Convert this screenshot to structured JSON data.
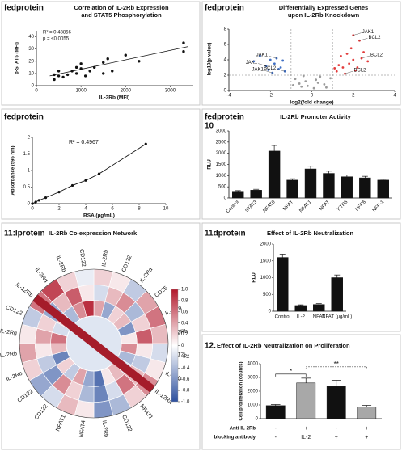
{
  "chart_data": [
    {
      "type": "scatter",
      "label": "fedprotein",
      "title": [
        "Correlation of IL-2Rb Expression",
        "and STAT5 Phosphorylation"
      ],
      "xlabel": "IL-3Rb (MFI)",
      "ylabel": "p-STAT5 (MFI)",
      "x": [
        400,
        500,
        600,
        700,
        800,
        900,
        1000,
        1000,
        1100,
        1200,
        1300,
        1500,
        1500,
        1600,
        1700,
        2000,
        2300,
        3300,
        3300,
        500,
        900,
        400
      ],
      "y": [
        5,
        8,
        7,
        9,
        12,
        10,
        14,
        18,
        8,
        12,
        15,
        19,
        10,
        22,
        12,
        25,
        20,
        35,
        28,
        12,
        15,
        9
      ],
      "color": "#111111",
      "trendline": {
        "x": [
          300,
          3400
        ],
        "y": [
          8,
          32
        ]
      },
      "annotations": [
        "R² = 0.48856",
        "p = <0.0055"
      ],
      "xlim": [
        0,
        3500
      ],
      "xticks": [
        0,
        1000,
        2000,
        3000
      ],
      "ylim": [
        0,
        45
      ],
      "yticks": [
        0,
        10,
        20,
        30,
        40
      ]
    },
    {
      "type": "volcano",
      "label": "fedprotein",
      "title": [
        "Differentially Expressed Genes",
        "upon IL-2Rb Knockdown"
      ],
      "xlabel": "log2(fold change)",
      "ylabel": "-log10(p-value)",
      "series": [
        {
          "color": "#3f6fc4",
          "x": [
            -1.5,
            -1.8,
            -2,
            -2.2,
            -1.3,
            -2.5,
            -1.6,
            -2.8,
            -1.9,
            -1.4,
            -2.1,
            -1.7
          ],
          "y": [
            3,
            3.5,
            4,
            3.2,
            2.5,
            4.5,
            2.8,
            3.8,
            2.3,
            3.9,
            2.7,
            4.2
          ]
        },
        {
          "color": "#e23b3b",
          "x": [
            1.2,
            1.5,
            1.8,
            2,
            2.2,
            1.4,
            2.5,
            1.6,
            1.9,
            2.3,
            2.7,
            1.3,
            2.1,
            1.7,
            2.4,
            1.1,
            2.0
          ],
          "y": [
            2.5,
            3,
            3.5,
            4,
            3,
            4.5,
            5,
            2.2,
            5.5,
            6.5,
            3.8,
            3.3,
            2.6,
            4.8,
            4.2,
            2.9,
            7.2
          ]
        },
        {
          "color": "#9a9a9a",
          "x": [
            -0.5,
            0.3,
            -0.8,
            0.6,
            0.1,
            -0.3,
            0.9,
            -0.6,
            0.4,
            -0.2,
            0.7,
            -0.9,
            0.2,
            -0.4
          ],
          "y": [
            0.5,
            1,
            1.5,
            0.8,
            0.3,
            1.2,
            1.6,
            0.9,
            1.8,
            0.6,
            0.4,
            0.7,
            1.4,
            1.9
          ]
        }
      ],
      "vlines": [
        -1,
        1
      ],
      "hline": 2,
      "annotations": [
        {
          "text": "JAK1",
          "x": 2.0,
          "y": 7.2
        },
        {
          "text": "BCL2",
          "x": 2.3,
          "y": 6.5
        },
        {
          "text": "BCL2",
          "x": 2.4,
          "y": 4.2
        },
        {
          "text": "BCL2",
          "x": 1.6,
          "y": 2.2
        },
        {
          "text": "JAK1",
          "x": -1.7,
          "y": 4.2
        },
        {
          "text": "JAK1",
          "x": -2.2,
          "y": 3.2
        },
        {
          "text": "JAK1",
          "x": -1.9,
          "y": 2.3
        },
        {
          "text": "BCL2",
          "x": -1.3,
          "y": 2.5
        }
      ],
      "xlim": [
        -4,
        4
      ],
      "xticks": [
        -4,
        -2,
        0,
        2,
        4
      ],
      "ylim": [
        0,
        8
      ],
      "yticks": [
        0,
        2,
        4,
        6,
        8
      ]
    },
    {
      "type": "line",
      "label": "fedprotein",
      "xlabel": "BSA (µg/mL)",
      "ylabel": "Absorbance (595 nm)",
      "x": [
        0,
        0.25,
        0.5,
        1,
        2,
        3,
        4,
        5,
        8.5
      ],
      "y": [
        0,
        0.05,
        0.1,
        0.18,
        0.35,
        0.55,
        0.7,
        0.9,
        1.8
      ],
      "color": "#111111",
      "annotations": [
        "R² = 0.4967"
      ],
      "xlim": [
        0,
        10
      ],
      "xticks": [
        0,
        2,
        4,
        6,
        8,
        10
      ],
      "ylim": [
        0,
        2
      ],
      "yticks": [
        0,
        0.5,
        1,
        1.5,
        2
      ]
    },
    {
      "type": "bar",
      "label": "fedprotein",
      "panel_number": "10",
      "title": [
        "IL-2Rb Promoter Activity"
      ],
      "ylabel": "RLU",
      "categories": [
        "Control",
        "STAT3",
        "NFAT0",
        "NFAT",
        "NFAT1",
        "NFAT",
        "KTR6",
        "NFR6",
        "NFP-1"
      ],
      "values": [
        300,
        350,
        2100,
        800,
        1300,
        1100,
        950,
        900,
        800
      ],
      "errors": [
        30,
        40,
        250,
        60,
        120,
        100,
        80,
        70,
        40
      ],
      "color": "#111111",
      "ylim": [
        0,
        3000
      ],
      "yticks": [
        0,
        500,
        1000,
        1500,
        2000,
        2500,
        3000
      ]
    },
    {
      "type": "circular-heatmap",
      "label": "11:lprotein",
      "title": [
        "IL-2Rb Co-expression Network"
      ],
      "labels": [
        "IL-2Rb",
        "CD122",
        "IL-2Rα",
        "CD25",
        "IL-2Rg",
        "IL-2Rb",
        "IL-17b",
        "IL-17D",
        "IL-12Ra",
        "NFAT1",
        "CD122",
        "IL-2Rb",
        "NFAT4",
        "NFAT1",
        "CD122",
        "CD122",
        "IL-2Rb",
        "IL-2Rb",
        "IL-2Rg",
        "CD122",
        "IL-12Rb",
        "IL-2Rα",
        "IL-2Rb",
        "CD122"
      ],
      "values": [
        [
          0.2,
          0.1,
          -0.3,
          0.4,
          0.6,
          0.3,
          -0.2,
          0.1,
          0.5,
          0.2,
          -0.4,
          -0.6,
          0.1,
          0.3,
          -0.2,
          -0.5,
          0.2,
          0.4,
          0.1,
          -0.3,
          0.6,
          0.8,
          0.2,
          -0.1
        ],
        [
          -0.2,
          0.3,
          0.5,
          -0.4,
          0.2,
          0.7,
          0.1,
          -0.3,
          0.3,
          0.6,
          -0.2,
          -0.7,
          -0.4,
          0.2,
          0.5,
          -0.6,
          -0.3,
          0.1,
          0.4,
          0.2,
          -0.5,
          0.3,
          0.7,
          0.1
        ],
        [
          0.4,
          -0.5,
          0.2,
          0.3,
          -0.6,
          0.1,
          0.5,
          -0.4,
          -0.2,
          0.3,
          0.1,
          -0.8,
          -0.5,
          0.4,
          -0.3,
          0.2,
          -0.7,
          0.3,
          0.6,
          -0.2,
          0.2,
          -0.4,
          0.5,
          0.9
        ]
      ],
      "colorbar_lim": [
        -1,
        1
      ],
      "colorbar_ticks": [
        {
          "value": 1,
          "label": "1.0"
        },
        0.8,
        0.6,
        0.4,
        0.2,
        0,
        -0.2,
        -0.4,
        -0.6,
        -0.8,
        {
          "value": -1,
          "label": "-1.0"
        }
      ]
    },
    {
      "type": "bar",
      "label": "11dprotein",
      "title": [
        "Effect of IL-2Rb Neutralization"
      ],
      "ylabel": "RLU",
      "categories": [
        "Control",
        "IL-2",
        "NFAT",
        "NFAT (µg/mL)"
      ],
      "values": [
        1600,
        170,
        200,
        1000
      ],
      "errors": [
        100,
        20,
        25,
        80
      ],
      "color": "#111111",
      "ylim": [
        0,
        2000
      ],
      "yticks": [
        0,
        500,
        1000,
        1500,
        2000
      ]
    },
    {
      "type": "bar",
      "label": "12.",
      "title": [
        "Effect of IL-2Rb Neutralization on Proliferation"
      ],
      "ylabel": "Cell proliferation (counts)",
      "values": [
        950,
        2600,
        2350,
        850
      ],
      "errors": [
        80,
        350,
        450,
        120
      ],
      "colors": [
        "#111111",
        "#a8a8a8",
        "#111111",
        "#a8a8a8"
      ],
      "significance": [
        {
          "text": "*",
          "from": 0,
          "to": 1
        },
        {
          "text": "**",
          "from": 1,
          "to": 3
        }
      ],
      "conditions": [
        {
          "name": "Anti-IL-2Rb",
          "values": [
            "-",
            "+",
            "-",
            "+"
          ]
        },
        {
          "name": "blocking antibody",
          "values": [
            "-",
            "IL-2",
            "+",
            "+"
          ]
        }
      ],
      "ylim": [
        0,
        4000
      ],
      "yticks": [
        0,
        1000,
        2000,
        3000,
        4000
      ]
    }
  ]
}
